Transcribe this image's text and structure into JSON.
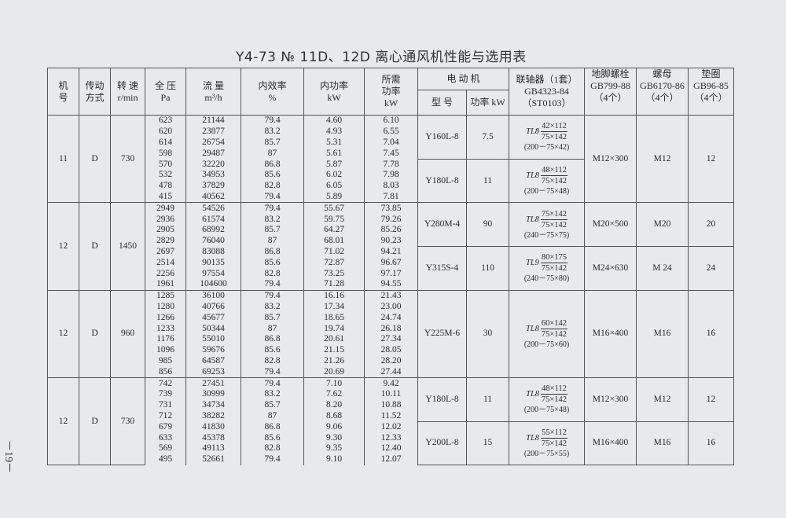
{
  "title": "Y4-73 № 11D、12D 离心通风机性能与选用表",
  "page_number": "－19－",
  "headers": {
    "machine": "机\n号",
    "drive": "传动\n方式",
    "speed": "转 速\nr/min",
    "pressure": "全 压\nPa",
    "flow": "流 量\nm³/h",
    "efficiency": "内效率\n%",
    "internal_power": "内功率\nkW",
    "required_power": "所需\n功率\nkW",
    "motor": "电 动 机",
    "motor_model": "型  号",
    "motor_power": "功率 kW",
    "coupling": "联轴器（1套）\nGB4323-84\n（ST0103）",
    "bolt": "地脚螺栓\nGB799-88\n（4个）",
    "nut": "螺母\nGB6170-86\n（4个）",
    "washer": "垫圈\nGB96-85\n（4个）"
  },
  "groups": [
    {
      "machine": "11",
      "drive": "D",
      "speed": "730",
      "rows": [
        [
          "623",
          "21144",
          "79.4",
          "4.60",
          "6.10"
        ],
        [
          "620",
          "23877",
          "83.2",
          "4.93",
          "6.55"
        ],
        [
          "614",
          "26754",
          "85.7",
          "5.31",
          "7.04"
        ],
        [
          "598",
          "29487",
          "87",
          "5.61",
          "7.45"
        ],
        [
          "570",
          "32220",
          "86.8",
          "5.87",
          "7.78"
        ],
        [
          "532",
          "34953",
          "85.6",
          "6.02",
          "7.98"
        ],
        [
          "478",
          "37829",
          "82.8",
          "6.05",
          "8.03"
        ],
        [
          "415",
          "40562",
          "79.4",
          "5.89",
          "7.81"
        ]
      ],
      "motors": [
        {
          "model": "Y160L-8",
          "power": "7.5",
          "coupling": {
            "type": "TL8",
            "num": "42×112",
            "den": "75×142",
            "note": "(200－75×42)"
          }
        },
        {
          "model": "Y180L-8",
          "power": "11",
          "coupling": {
            "type": "TL8",
            "num": "48×112",
            "den": "75×142",
            "note": "(200－75×48)"
          }
        }
      ],
      "fasteners": [
        {
          "bolt": "M12×300",
          "nut": "M12",
          "washer": "12"
        }
      ]
    },
    {
      "machine": "12",
      "drive": "D",
      "speed": "1450",
      "rows": [
        [
          "2949",
          "54526",
          "79.4",
          "55.67",
          "73.85"
        ],
        [
          "2936",
          "61574",
          "83.2",
          "59.75",
          "79.26"
        ],
        [
          "2905",
          "68992",
          "85.7",
          "64.27",
          "85.26"
        ],
        [
          "2829",
          "76040",
          "87",
          "68.01",
          "90.23"
        ],
        [
          "2697",
          "83088",
          "86.8",
          "71.02",
          "94.21"
        ],
        [
          "2514",
          "90135",
          "85.6",
          "72.87",
          "96.67"
        ],
        [
          "2256",
          "97554",
          "82.8",
          "73.25",
          "97.17"
        ],
        [
          "1961",
          "104600",
          "79.4",
          "71.28",
          "94.55"
        ]
      ],
      "motors": [
        {
          "model": "Y280M-4",
          "power": "90",
          "coupling": {
            "type": "TL8",
            "num": "75×142",
            "den": "75×142",
            "note": "(240－75×75)"
          }
        },
        {
          "model": "Y315S-4",
          "power": "110",
          "coupling": {
            "type": "TL9",
            "num": "80×175",
            "den": "75×142",
            "note": "(240－75×80)"
          }
        }
      ],
      "fasteners": [
        {
          "bolt": "M20×500",
          "nut": "M20",
          "washer": "20"
        },
        {
          "bolt": "M24×630",
          "nut": "M 24",
          "washer": "24"
        }
      ]
    },
    {
      "machine": "12",
      "drive": "D",
      "speed": "960",
      "rows": [
        [
          "1285",
          "36100",
          "79.4",
          "16.16",
          "21.43"
        ],
        [
          "1280",
          "40766",
          "83.2",
          "17.34",
          "23.00"
        ],
        [
          "1266",
          "45677",
          "85.7",
          "18.65",
          "24.74"
        ],
        [
          "1233",
          "50344",
          "87",
          "19.74",
          "26.18"
        ],
        [
          "1176",
          "55010",
          "86.8",
          "20.61",
          "27.34"
        ],
        [
          "1096",
          "59676",
          "85.6",
          "21.15",
          "28.05"
        ],
        [
          "985",
          "64587",
          "82.8",
          "21.26",
          "28.20"
        ],
        [
          "856",
          "69253",
          "79.4",
          "20.69",
          "27.44"
        ]
      ],
      "motors": [
        {
          "model": "Y225M-6",
          "power": "30",
          "coupling": {
            "type": "TL8",
            "num": "60×142",
            "den": "75×142",
            "note": "(200－75×60)"
          }
        }
      ],
      "fasteners": [
        {
          "bolt": "M16×400",
          "nut": "M16",
          "washer": "16"
        }
      ]
    },
    {
      "machine": "12",
      "drive": "D",
      "speed": "730",
      "rows": [
        [
          "742",
          "27451",
          "79.4",
          "7.10",
          "9.42"
        ],
        [
          "739",
          "30999",
          "83.2",
          "7.62",
          "10.11"
        ],
        [
          "731",
          "34734",
          "85.7",
          "8.20",
          "10.88"
        ],
        [
          "712",
          "38282",
          "87",
          "8.68",
          "11.52"
        ],
        [
          "679",
          "41830",
          "86.8",
          "9.06",
          "12.02"
        ],
        [
          "633",
          "45378",
          "85.6",
          "9.30",
          "12.33"
        ],
        [
          "569",
          "49113",
          "82.8",
          "9.35",
          "12.40"
        ],
        [
          "495",
          "52661",
          "79.4",
          "9.10",
          "12.07"
        ]
      ],
      "motors": [
        {
          "model": "Y180L-8",
          "power": "11",
          "coupling": {
            "type": "TL8",
            "num": "48×112",
            "den": "75×142",
            "note": "(200－75×48)"
          }
        },
        {
          "model": "Y200L-8",
          "power": "15",
          "coupling": {
            "type": "TL8",
            "num": "55×112",
            "den": "75×142",
            "note": "(200－75×55)"
          }
        }
      ],
      "fasteners": [
        {
          "bolt": "M12×300",
          "nut": "M12",
          "washer": "12"
        },
        {
          "bolt": "M16×400",
          "nut": "M16",
          "washer": "16"
        }
      ]
    }
  ]
}
